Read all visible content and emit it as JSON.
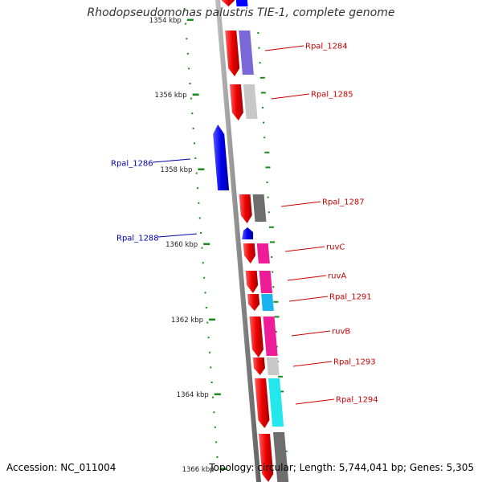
{
  "title": "Rhodopseudomonas palustris TIE-1, complete genome",
  "footer": {
    "accession": "Accession: NC_011004",
    "summary": "Topology: circular; Length: 5,744,041 bp; Genes: 5,305"
  },
  "colors": {
    "backbone": "#8c8c8c",
    "tick": "#1a8a1a",
    "forward_label": "#cc0000",
    "reverse_label": "#0000b0",
    "forward_gene": "#ff0000",
    "reverse_gene": "#0000ff"
  },
  "ticks": [
    {
      "label": "1354 kbp"
    },
    {
      "label": "1356 kbp"
    },
    {
      "label": "1358 kbp"
    },
    {
      "label": "1360 kbp"
    },
    {
      "label": "1362 kbp"
    },
    {
      "label": "1364 kbp"
    },
    {
      "label": "1366 kbp"
    }
  ],
  "genes": [
    {
      "label": "Rpal_1284",
      "strand": "+",
      "category_color": "#7a68d8"
    },
    {
      "label": "Rpal_1285",
      "strand": "+",
      "category_color": "#c8c8c8"
    },
    {
      "label": "Rpal_1286",
      "strand": "-",
      "category_color": ""
    },
    {
      "label": "Rpal_1287",
      "strand": "+",
      "category_color": "#6e6e6e"
    },
    {
      "label": "Rpal_1288",
      "strand": "-",
      "category_color": ""
    },
    {
      "label": "ruvC",
      "strand": "+",
      "category_color": "#ee1c96"
    },
    {
      "label": "ruvA",
      "strand": "+",
      "category_color": "#ee1c96"
    },
    {
      "label": "Rpal_1291",
      "strand": "+",
      "category_color": "#1ab4f0"
    },
    {
      "label": "ruvB",
      "strand": "+",
      "category_color": "#ee1c96"
    },
    {
      "label": "Rpal_1293",
      "strand": "+",
      "category_color": "#c8c8c8"
    },
    {
      "label": "Rpal_1294",
      "strand": "+",
      "category_color": "#22e8ee"
    }
  ]
}
